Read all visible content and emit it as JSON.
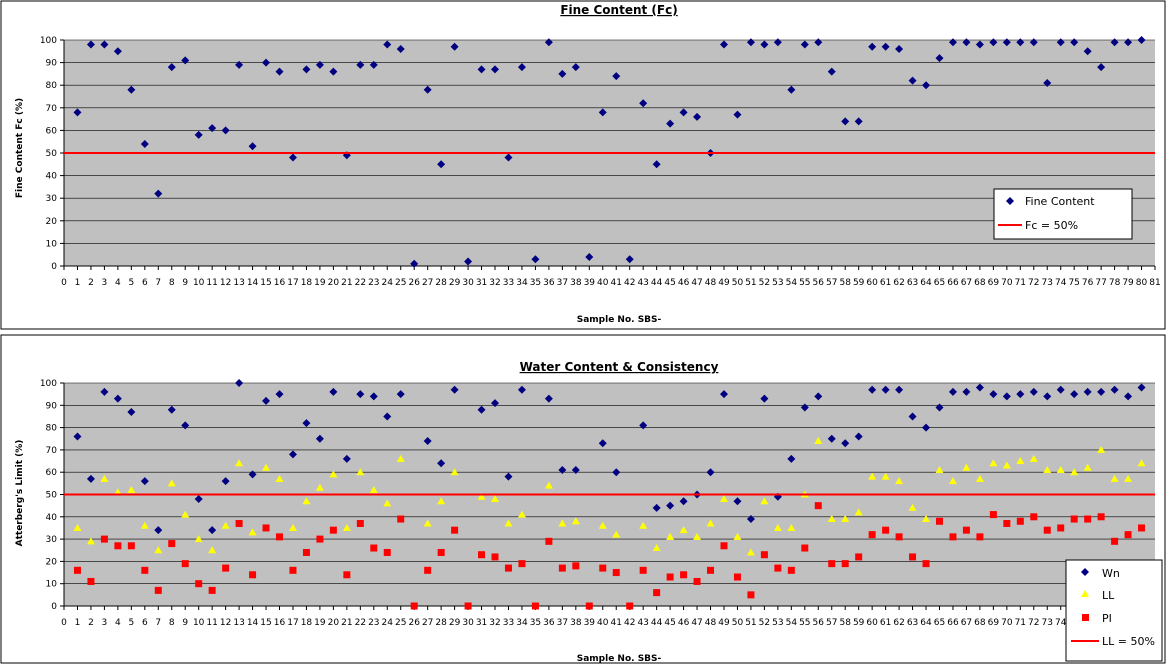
{
  "colors": {
    "plot_bg": "#c0c0c0",
    "diamond": "#000080",
    "ll": "#ffff00",
    "pi": "#ff0000",
    "line50": "#ff0000"
  },
  "chart_data": [
    {
      "type": "scatter",
      "title": "Fine Content (Fc)",
      "xlabel": "Sample No. SBS-",
      "ylabel": "Fine Content Fc (%)",
      "xlim": [
        0,
        81
      ],
      "ylim": [
        0,
        100
      ],
      "x_ticks": [
        0,
        1,
        2,
        3,
        4,
        5,
        6,
        7,
        8,
        9,
        10,
        11,
        12,
        13,
        14,
        15,
        16,
        17,
        18,
        19,
        20,
        21,
        22,
        23,
        24,
        25,
        26,
        27,
        28,
        29,
        30,
        31,
        32,
        33,
        34,
        35,
        36,
        37,
        38,
        39,
        40,
        41,
        42,
        43,
        44,
        45,
        46,
        47,
        48,
        49,
        50,
        51,
        52,
        53,
        54,
        55,
        56,
        57,
        58,
        59,
        60,
        61,
        62,
        63,
        64,
        65,
        66,
        67,
        68,
        69,
        70,
        71,
        72,
        73,
        74,
        75,
        76,
        77,
        78,
        79,
        80,
        81
      ],
      "y_ticks": [
        0,
        10,
        20,
        30,
        40,
        50,
        60,
        70,
        80,
        90,
        100
      ],
      "grid": true,
      "legend_position": "bottom-right",
      "legend": [
        "Fine Content",
        "Fc = 50%"
      ],
      "series": [
        {
          "name": "Fine Content",
          "x": [
            1,
            2,
            3,
            4,
            5,
            6,
            7,
            8,
            9,
            10,
            11,
            12,
            13,
            14,
            15,
            16,
            17,
            18,
            19,
            20,
            21,
            22,
            23,
            24,
            25,
            26,
            27,
            28,
            29,
            30,
            31,
            32,
            33,
            34,
            35,
            36,
            37,
            38,
            39,
            40,
            41,
            42,
            43,
            44,
            45,
            46,
            47,
            48,
            49,
            50,
            51,
            52,
            53,
            54,
            55,
            56,
            57,
            58,
            59,
            60,
            61,
            62,
            63,
            64,
            65,
            66,
            67,
            68,
            69,
            70,
            71,
            72,
            73,
            74,
            75,
            76,
            77,
            78,
            79,
            80
          ],
          "y": [
            68,
            98,
            98,
            95,
            78,
            54,
            32,
            88,
            91,
            58,
            61,
            60,
            89,
            53,
            90,
            86,
            48,
            87,
            89,
            86,
            49,
            89,
            89,
            98,
            96,
            1,
            78,
            45,
            97,
            2,
            87,
            87,
            48,
            88,
            3,
            99,
            85,
            88,
            4,
            68,
            84,
            3,
            72,
            45,
            63,
            68,
            66,
            50,
            98,
            67,
            99,
            98,
            99,
            78,
            98,
            99,
            86,
            64,
            64,
            97,
            97,
            96,
            82,
            80,
            92,
            99,
            99,
            98,
            99,
            99,
            99,
            99,
            81,
            99,
            99,
            95,
            88,
            99,
            99,
            100
          ]
        },
        {
          "name": "Fc = 50%",
          "type": "hline",
          "y": 50
        }
      ]
    },
    {
      "type": "scatter",
      "title": "Water Content & Consistency",
      "xlabel": "Sample No. SBS-",
      "ylabel": "Atterberg's Limit (%)",
      "xlim": [
        0,
        81
      ],
      "ylim": [
        0,
        100
      ],
      "x_ticks": [
        0,
        1,
        2,
        3,
        4,
        5,
        6,
        7,
        8,
        9,
        10,
        11,
        12,
        13,
        14,
        15,
        16,
        17,
        18,
        19,
        20,
        21,
        22,
        23,
        24,
        25,
        26,
        27,
        28,
        29,
        30,
        31,
        32,
        33,
        34,
        35,
        36,
        37,
        38,
        39,
        40,
        41,
        42,
        43,
        44,
        45,
        46,
        47,
        48,
        49,
        50,
        51,
        52,
        53,
        54,
        55,
        56,
        57,
        58,
        59,
        60,
        61,
        62,
        63,
        64,
        65,
        66,
        67,
        68,
        69,
        70,
        71,
        72,
        73,
        74,
        75,
        76,
        77,
        78,
        79,
        80,
        81
      ],
      "y_ticks": [
        0,
        10,
        20,
        30,
        40,
        50,
        60,
        70,
        80,
        90,
        100
      ],
      "grid": true,
      "legend_position": "bottom-right",
      "legend": [
        "Wn",
        "LL",
        "PI",
        "LL = 50%"
      ],
      "series": [
        {
          "name": "Wn",
          "x": [
            1,
            2,
            3,
            4,
            5,
            6,
            7,
            8,
            9,
            10,
            11,
            12,
            13,
            14,
            15,
            16,
            17,
            18,
            19,
            20,
            21,
            22,
            23,
            24,
            25,
            27,
            28,
            29,
            31,
            32,
            33,
            34,
            36,
            37,
            38,
            40,
            41,
            43,
            44,
            45,
            46,
            47,
            48,
            49,
            50,
            51,
            52,
            53,
            54,
            55,
            56,
            57,
            58,
            59,
            60,
            61,
            62,
            63,
            64,
            65,
            66,
            67,
            68,
            69,
            70,
            71,
            72,
            73,
            74,
            75,
            76,
            77,
            78,
            79,
            80
          ],
          "y": [
            76,
            57,
            96,
            93,
            87,
            56,
            34,
            88,
            81,
            48,
            34,
            56,
            100,
            59,
            92,
            95,
            68,
            82,
            75,
            96,
            66,
            95,
            94,
            85,
            95,
            74,
            64,
            97,
            88,
            91,
            58,
            97,
            93,
            61,
            61,
            73,
            60,
            81,
            44,
            45,
            47,
            50,
            60,
            95,
            47,
            39,
            93,
            49,
            66,
            89,
            94,
            75,
            73,
            76,
            97,
            97,
            97,
            85,
            80,
            89,
            96,
            96,
            98,
            95,
            94,
            95,
            96,
            94,
            97,
            95,
            96,
            96,
            97,
            94,
            98
          ]
        },
        {
          "name": "LL",
          "x": [
            1,
            2,
            3,
            4,
            5,
            6,
            7,
            8,
            9,
            10,
            11,
            12,
            13,
            14,
            15,
            16,
            17,
            18,
            19,
            20,
            21,
            22,
            23,
            24,
            25,
            27,
            28,
            29,
            31,
            32,
            33,
            34,
            36,
            37,
            38,
            40,
            41,
            43,
            44,
            45,
            46,
            47,
            48,
            49,
            50,
            51,
            52,
            53,
            54,
            55,
            56,
            57,
            58,
            59,
            60,
            61,
            62,
            63,
            64,
            65,
            66,
            67,
            68,
            69,
            70,
            71,
            72,
            73,
            74,
            75,
            76,
            77,
            78,
            79,
            80
          ],
          "y": [
            35,
            29,
            57,
            51,
            52,
            36,
            25,
            55,
            41,
            30,
            25,
            36,
            64,
            33,
            62,
            57,
            35,
            47,
            53,
            59,
            35,
            60,
            52,
            46,
            66,
            37,
            47,
            60,
            49,
            48,
            37,
            41,
            54,
            37,
            38,
            36,
            32,
            36,
            26,
            31,
            34,
            31,
            37,
            48,
            31,
            24,
            47,
            35,
            35,
            50,
            74,
            39,
            39,
            42,
            58,
            58,
            56,
            44,
            39,
            61,
            56,
            62,
            57,
            64,
            63,
            65,
            66,
            61,
            61,
            60,
            62,
            70,
            57,
            57,
            64
          ]
        },
        {
          "name": "PI",
          "x": [
            1,
            2,
            3,
            4,
            5,
            6,
            7,
            8,
            9,
            10,
            11,
            12,
            13,
            14,
            15,
            16,
            17,
            18,
            19,
            20,
            21,
            22,
            23,
            24,
            25,
            26,
            27,
            28,
            29,
            30,
            31,
            32,
            33,
            34,
            35,
            36,
            37,
            38,
            39,
            40,
            41,
            42,
            43,
            44,
            45,
            46,
            47,
            48,
            49,
            50,
            51,
            52,
            53,
            54,
            55,
            56,
            57,
            58,
            59,
            60,
            61,
            62,
            63,
            64,
            65,
            66,
            67,
            68,
            69,
            70,
            71,
            72,
            73,
            74,
            75,
            76,
            77,
            78,
            79,
            80
          ],
          "y": [
            16,
            11,
            30,
            27,
            27,
            16,
            7,
            28,
            19,
            10,
            7,
            17,
            37,
            14,
            35,
            31,
            16,
            24,
            30,
            34,
            14,
            37,
            26,
            24,
            39,
            0,
            16,
            24,
            34,
            0,
            23,
            22,
            17,
            19,
            0,
            29,
            17,
            18,
            0,
            17,
            15,
            0,
            16,
            6,
            13,
            14,
            11,
            16,
            27,
            13,
            5,
            23,
            17,
            16,
            26,
            45,
            19,
            19,
            22,
            32,
            34,
            31,
            22,
            19,
            38,
            31,
            34,
            31,
            41,
            37,
            38,
            40,
            34,
            35,
            39,
            39,
            40,
            29,
            32,
            35
          ]
        },
        {
          "name": "LL = 50%",
          "type": "hline",
          "y": 50
        }
      ]
    }
  ]
}
